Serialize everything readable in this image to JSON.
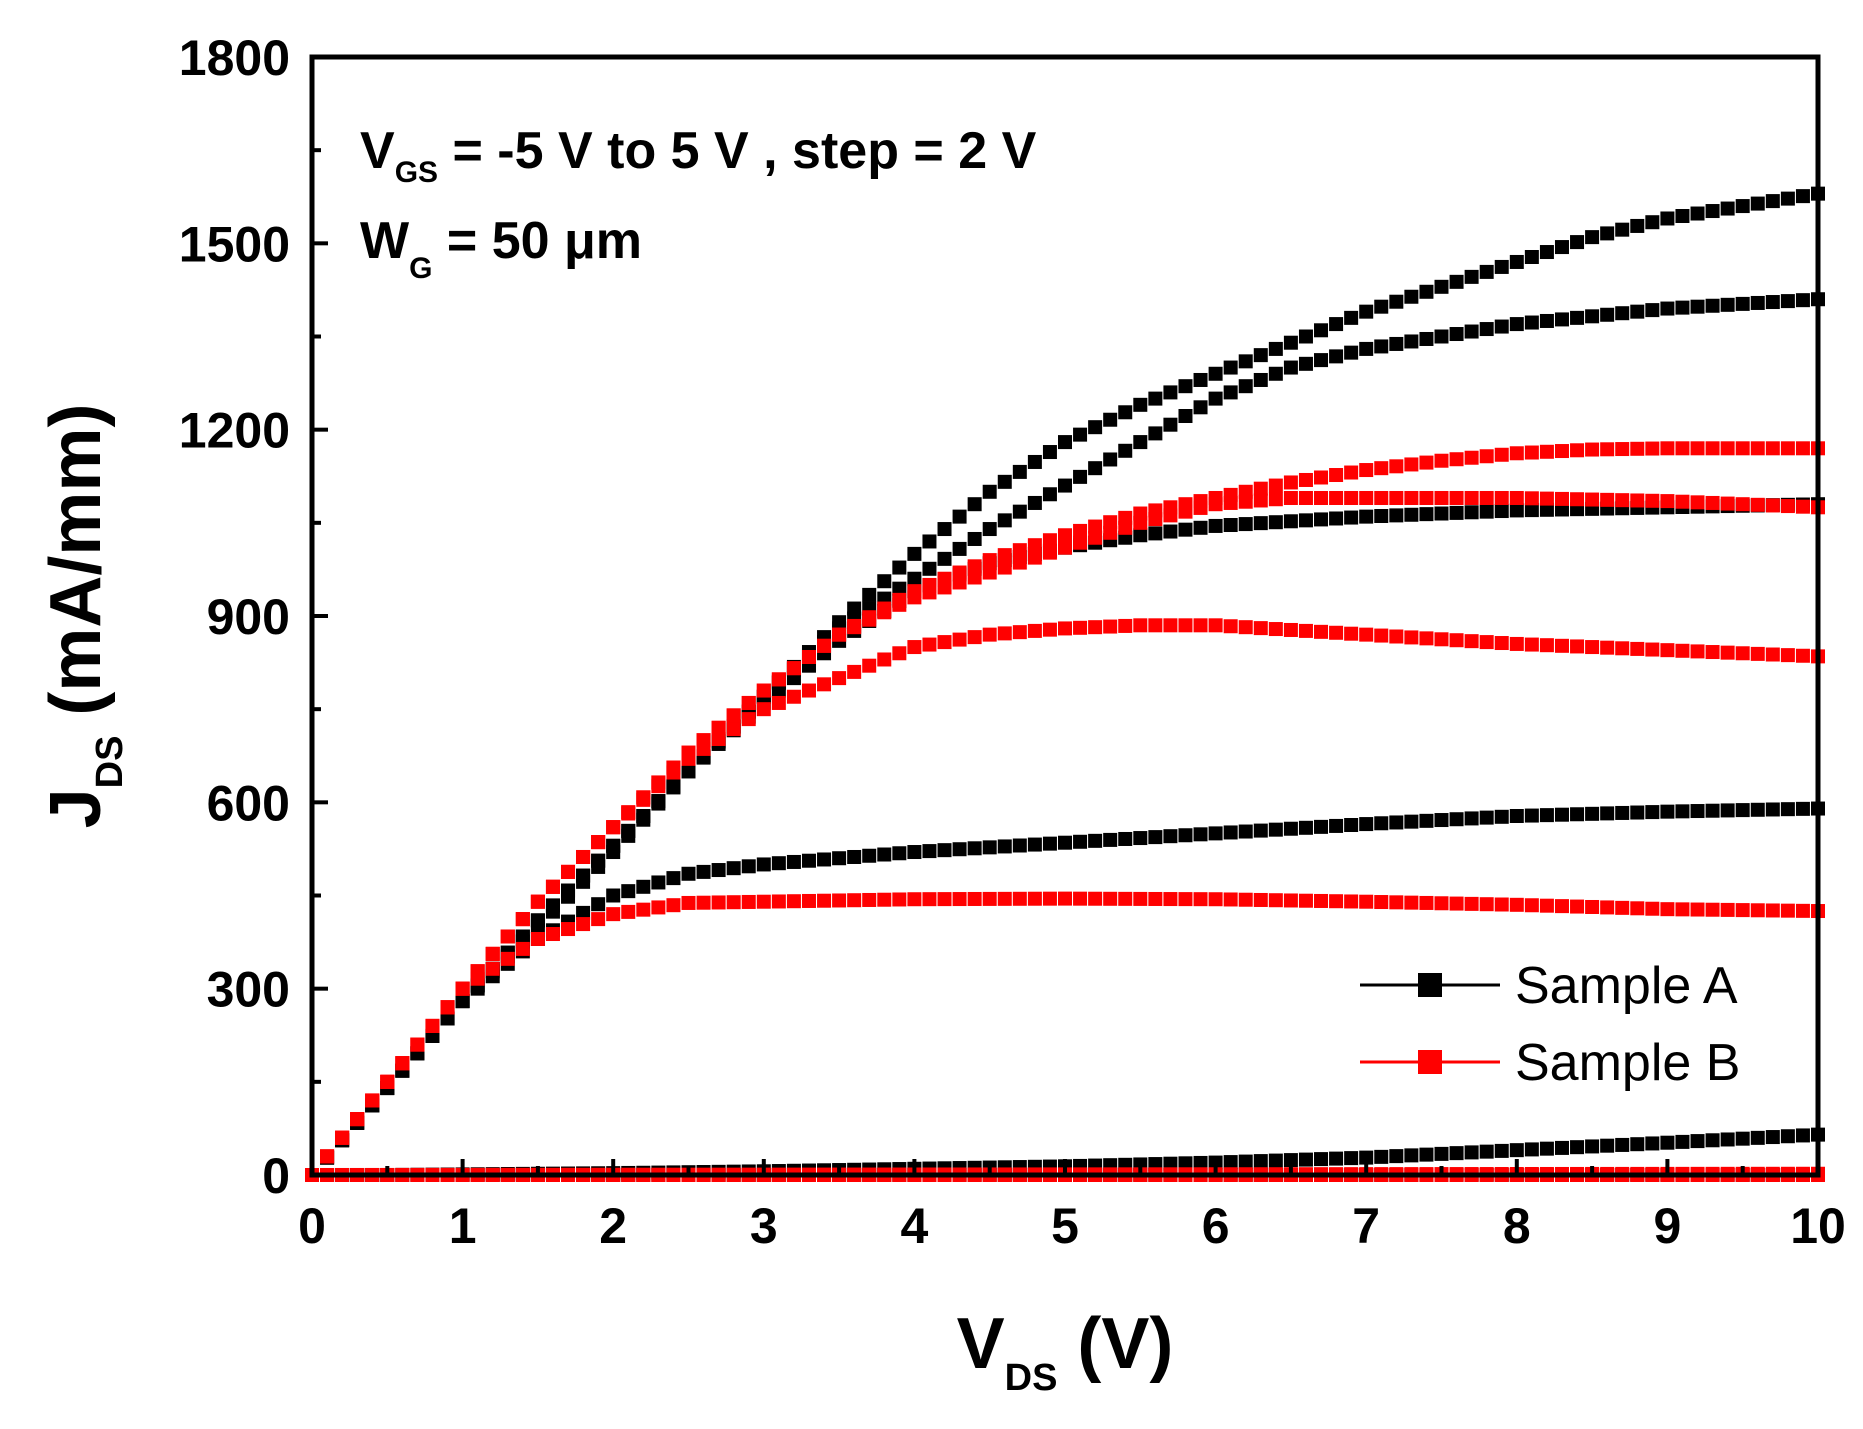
{
  "chart_data": {
    "type": "scatter",
    "xlim": [
      0,
      10
    ],
    "ylim": [
      0,
      1800
    ],
    "x_ticks": [
      "0",
      "1",
      "2",
      "3",
      "4",
      "5",
      "6",
      "7",
      "8",
      "9",
      "10"
    ],
    "y_ticks": [
      "0",
      "300",
      "600",
      "900",
      "1200",
      "1500",
      "1800"
    ],
    "xlabel": {
      "main": "V",
      "sub": "DS",
      "unit": " (V)"
    },
    "ylabel": {
      "main": "J",
      "sub": "DS",
      "unit": " (mA/mm)"
    },
    "annotation_line1": {
      "a": "V",
      "a_sub": "GS",
      "b": " = -5 V to 5 V , step = 2 V"
    },
    "annotation_line2": {
      "a": "W",
      "a_sub": "G",
      "b": " = 50 μm"
    },
    "legend_position": "bottom-right",
    "colors": {
      "sample_a": "#000000",
      "sample_b": "#ff0000"
    },
    "series": [
      {
        "name": "Sample A",
        "group": "A",
        "vgs": "-5",
        "x": [
          0,
          10
        ],
        "y": [
          0,
          0
        ]
      },
      {
        "name": "Sample A",
        "group": "A",
        "vgs": "-3",
        "x": [
          0,
          0.5,
          1,
          2,
          3,
          4,
          5,
          6,
          7,
          8,
          9,
          10
        ],
        "y": [
          0,
          0,
          1,
          3,
          6,
          10,
          14,
          20,
          28,
          40,
          52,
          65
        ]
      },
      {
        "name": "Sample A",
        "group": "A",
        "vgs": "-1",
        "x": [
          0,
          0.5,
          1,
          1.5,
          2,
          2.5,
          3,
          4,
          5,
          6,
          7,
          8,
          9,
          10
        ],
        "y": [
          0,
          140,
          280,
          380,
          450,
          485,
          500,
          520,
          535,
          550,
          565,
          578,
          585,
          590
        ]
      },
      {
        "name": "Sample A",
        "group": "A",
        "vgs": "1",
        "x": [
          0,
          0.5,
          1,
          1.5,
          2,
          2.5,
          3,
          3.5,
          4,
          4.5,
          5,
          5.5,
          6,
          7,
          8,
          9,
          10
        ],
        "y": [
          0,
          140,
          280,
          400,
          520,
          650,
          760,
          860,
          940,
          985,
          1010,
          1030,
          1045,
          1060,
          1070,
          1075,
          1080
        ]
      },
      {
        "name": "Sample A",
        "group": "A",
        "vgs": "3",
        "x": [
          0,
          0.5,
          1,
          1.5,
          2,
          2.5,
          3,
          3.5,
          4,
          4.5,
          5,
          5.5,
          6,
          6.5,
          7,
          8,
          9,
          10
        ],
        "y": [
          0,
          140,
          280,
          410,
          530,
          650,
          770,
          880,
          960,
          1040,
          1110,
          1180,
          1250,
          1300,
          1330,
          1370,
          1395,
          1410
        ]
      },
      {
        "name": "Sample A",
        "group": "A",
        "vgs": "5",
        "x": [
          0,
          0.5,
          1,
          1.5,
          2,
          2.5,
          3,
          3.5,
          4,
          4.5,
          5,
          5.5,
          6,
          6.5,
          7,
          7.5,
          8,
          8.5,
          9,
          9.5,
          10
        ],
        "y": [
          0,
          140,
          280,
          410,
          530,
          650,
          770,
          890,
          1000,
          1100,
          1180,
          1240,
          1290,
          1340,
          1390,
          1430,
          1470,
          1510,
          1540,
          1560,
          1580
        ]
      },
      {
        "name": "Sample B",
        "group": "B",
        "vgs": "-5",
        "x": [
          0,
          10
        ],
        "y": [
          0,
          0
        ]
      },
      {
        "name": "Sample B",
        "group": "B",
        "vgs": "-3",
        "x": [
          0,
          10
        ],
        "y": [
          0,
          2
        ]
      },
      {
        "name": "Sample B",
        "group": "B",
        "vgs": "-1",
        "x": [
          0,
          0.5,
          1,
          1.5,
          2,
          2.5,
          3,
          4,
          5,
          6,
          7,
          8,
          9,
          10
        ],
        "y": [
          0,
          150,
          300,
          380,
          420,
          438,
          440,
          444,
          445,
          444,
          440,
          435,
          428,
          425
        ]
      },
      {
        "name": "Sample B",
        "group": "B",
        "vgs": "1",
        "x": [
          0,
          0.5,
          1,
          1.5,
          2,
          2.5,
          3,
          3.5,
          4,
          4.5,
          5,
          5.5,
          6,
          7,
          8,
          9,
          10
        ],
        "y": [
          0,
          150,
          300,
          440,
          560,
          670,
          750,
          800,
          850,
          870,
          880,
          885,
          885,
          870,
          855,
          845,
          835
        ]
      },
      {
        "name": "Sample B",
        "group": "B",
        "vgs": "3",
        "x": [
          0,
          0.5,
          1,
          1.5,
          2,
          2.5,
          3,
          3.5,
          4,
          4.5,
          5,
          5.5,
          6,
          6.5,
          7,
          8,
          9,
          10
        ],
        "y": [
          0,
          150,
          300,
          440,
          560,
          680,
          780,
          870,
          930,
          970,
          1010,
          1050,
          1080,
          1090,
          1090,
          1090,
          1085,
          1075
        ]
      },
      {
        "name": "Sample B",
        "group": "B",
        "vgs": "5",
        "x": [
          0,
          0.5,
          1,
          1.5,
          2,
          2.5,
          3,
          3.5,
          4,
          4.5,
          5,
          5.5,
          6,
          6.5,
          7,
          7.5,
          8,
          8.5,
          9,
          9.5,
          10
        ],
        "y": [
          0,
          150,
          300,
          440,
          560,
          680,
          780,
          870,
          940,
          990,
          1030,
          1065,
          1090,
          1115,
          1135,
          1150,
          1162,
          1168,
          1170,
          1170,
          1170
        ]
      }
    ],
    "legend": [
      {
        "label": "Sample A",
        "color": "#000000"
      },
      {
        "label": "Sample B",
        "color": "#ff0000"
      }
    ]
  }
}
